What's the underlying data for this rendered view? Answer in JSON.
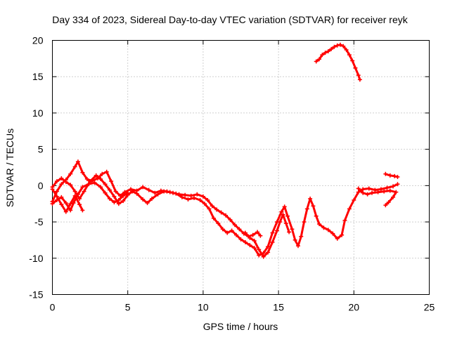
{
  "chart_data": {
    "type": "line",
    "title": "Day 334 of 2023, Sidereal Day-to-day VTEC variation (SDTVAR) for receiver reyk",
    "xlabel": "GPS time / hours",
    "ylabel": "SDTVAR / TECUs",
    "xlim": [
      0,
      25
    ],
    "ylim": [
      -15,
      20
    ],
    "xticks": [
      0,
      5,
      10,
      15,
      20,
      25
    ],
    "yticks": [
      -15,
      -10,
      -5,
      0,
      5,
      10,
      15,
      20
    ],
    "xtick_labels": [
      "0",
      "5",
      "10",
      "15",
      "20",
      "25"
    ],
    "ytick_labels": [
      "-15",
      "-10",
      "-5",
      "0",
      "5",
      "10",
      "15",
      "20"
    ],
    "grid": true,
    "marker": "+",
    "color": "#ff0000",
    "series": [
      {
        "name": "sat-track-1",
        "points": [
          [
            0,
            -2.2
          ],
          [
            0.3,
            -0.8
          ],
          [
            0.6,
            0.2
          ],
          [
            0.9,
            0.8
          ],
          [
            1.2,
            1.6
          ],
          [
            1.5,
            2.6
          ],
          [
            1.7,
            3.3
          ],
          [
            2.0,
            1.8
          ],
          [
            2.3,
            0.9
          ],
          [
            2.6,
            0.6
          ],
          [
            3.0,
            1.0
          ],
          [
            3.3,
            1.6
          ],
          [
            3.6,
            1.9
          ],
          [
            3.9,
            0.6
          ],
          [
            4.2,
            -0.8
          ],
          [
            4.5,
            -1.4
          ],
          [
            4.8,
            -0.9
          ],
          [
            5.2,
            -0.5
          ],
          [
            5.6,
            -0.7
          ],
          [
            6.0,
            -0.2
          ],
          [
            6.4,
            -0.6
          ],
          [
            6.8,
            -1.0
          ],
          [
            7.2,
            -0.7
          ],
          [
            7.6,
            -0.8
          ],
          [
            8.0,
            -1.0
          ],
          [
            8.4,
            -1.2
          ],
          [
            8.8,
            -1.3
          ],
          [
            9.2,
            -1.4
          ],
          [
            9.6,
            -1.2
          ],
          [
            10.0,
            -1.5
          ],
          [
            10.3,
            -2.0
          ],
          [
            10.6,
            -2.8
          ],
          [
            10.9,
            -3.3
          ],
          [
            11.2,
            -3.7
          ],
          [
            11.5,
            -4.1
          ],
          [
            11.8,
            -4.7
          ],
          [
            12.1,
            -5.4
          ],
          [
            12.4,
            -6.0
          ],
          [
            12.7,
            -6.6
          ],
          [
            13.0,
            -7.0
          ],
          [
            13.3,
            -6.8
          ],
          [
            13.6,
            -6.4
          ],
          [
            13.8,
            -6.9
          ]
        ]
      },
      {
        "name": "sat-track-2",
        "points": [
          [
            0,
            -0.2
          ],
          [
            0.3,
            0.6
          ],
          [
            0.6,
            1.0
          ],
          [
            0.9,
            0.5
          ],
          [
            1.2,
            0.1
          ],
          [
            1.5,
            -0.8
          ],
          [
            1.8,
            -1.8
          ],
          [
            2.1,
            -0.8
          ],
          [
            2.5,
            0.6
          ],
          [
            2.9,
            1.4
          ],
          [
            3.2,
            0.9
          ],
          [
            3.5,
            0.2
          ],
          [
            3.8,
            -0.6
          ],
          [
            4.1,
            -1.5
          ],
          [
            4.4,
            -2.5
          ],
          [
            4.7,
            -2.1
          ],
          [
            5.0,
            -1.3
          ],
          [
            5.3,
            -0.8
          ],
          [
            5.6,
            -1.1
          ],
          [
            6.0,
            -1.9
          ],
          [
            6.3,
            -2.4
          ],
          [
            6.6,
            -1.8
          ],
          [
            7.0,
            -1.2
          ],
          [
            7.4,
            -0.8
          ],
          [
            7.8,
            -0.9
          ],
          [
            8.2,
            -1.1
          ],
          [
            8.6,
            -1.6
          ],
          [
            9.0,
            -1.9
          ],
          [
            9.4,
            -1.7
          ],
          [
            9.8,
            -2.0
          ],
          [
            10.1,
            -2.5
          ],
          [
            10.4,
            -3.2
          ],
          [
            10.7,
            -4.5
          ],
          [
            11.0,
            -5.2
          ],
          [
            11.3,
            -6.0
          ],
          [
            11.6,
            -6.5
          ],
          [
            11.9,
            -6.2
          ],
          [
            12.2,
            -6.8
          ],
          [
            12.5,
            -7.4
          ],
          [
            12.8,
            -7.8
          ],
          [
            13.1,
            -8.2
          ],
          [
            13.4,
            -8.6
          ],
          [
            13.7,
            -9.6
          ],
          [
            14.0,
            -9.3
          ],
          [
            14.3,
            -8.4
          ],
          [
            14.6,
            -6.5
          ],
          [
            14.9,
            -5.0
          ],
          [
            15.2,
            -3.6
          ],
          [
            15.4,
            -2.9
          ],
          [
            15.6,
            -4.2
          ],
          [
            15.9,
            -6.0
          ],
          [
            16.1,
            -7.5
          ],
          [
            16.3,
            -8.3
          ],
          [
            16.5,
            -7.0
          ],
          [
            16.7,
            -5.0
          ],
          [
            16.9,
            -3.2
          ],
          [
            17.1,
            -1.8
          ],
          [
            17.3,
            -2.8
          ],
          [
            17.5,
            -4.2
          ],
          [
            17.7,
            -5.3
          ],
          [
            18.0,
            -5.8
          ],
          [
            18.3,
            -6.1
          ],
          [
            18.6,
            -6.6
          ],
          [
            18.9,
            -7.3
          ],
          [
            19.2,
            -6.8
          ],
          [
            19.4,
            -4.8
          ],
          [
            19.7,
            -3.2
          ],
          [
            20.0,
            -2.0
          ],
          [
            20.3,
            -0.9
          ],
          [
            20.6,
            -0.5
          ],
          [
            21.0,
            -0.4
          ],
          [
            21.4,
            -0.6
          ],
          [
            21.8,
            -0.5
          ],
          [
            22.2,
            -0.3
          ],
          [
            22.6,
            -0.1
          ],
          [
            22.9,
            0.2
          ]
        ]
      },
      {
        "name": "sat-track-3",
        "points": [
          [
            0,
            -2.5
          ],
          [
            0.3,
            -2.0
          ],
          [
            0.6,
            -1.6
          ],
          [
            0.9,
            -2.4
          ],
          [
            1.2,
            -3.4
          ],
          [
            1.4,
            -2.4
          ],
          [
            1.7,
            -1.2
          ],
          [
            2.0,
            -0.2
          ],
          [
            2.4,
            0.2
          ],
          [
            2.8,
            0.4
          ],
          [
            3.2,
            -0.2
          ],
          [
            3.5,
            -1.0
          ],
          [
            3.8,
            -1.8
          ],
          [
            4.1,
            -2.3
          ],
          [
            4.4,
            -2.0
          ],
          [
            4.7,
            -1.4
          ],
          [
            5.0,
            -1.0
          ]
        ]
      },
      {
        "name": "sat-track-4",
        "points": [
          [
            0,
            -0.5
          ],
          [
            0.3,
            -1.5
          ],
          [
            0.6,
            -2.6
          ],
          [
            0.9,
            -3.6
          ],
          [
            1.2,
            -2.5
          ],
          [
            1.5,
            -1.4
          ],
          [
            1.8,
            -2.6
          ],
          [
            2.0,
            -3.4
          ]
        ]
      },
      {
        "name": "sat-track-5",
        "points": [
          [
            12.8,
            -6.5
          ],
          [
            13.1,
            -7.2
          ],
          [
            13.4,
            -7.6
          ],
          [
            13.7,
            -8.8
          ],
          [
            14.0,
            -9.8
          ],
          [
            14.3,
            -9.2
          ],
          [
            14.6,
            -7.8
          ],
          [
            14.9,
            -6.2
          ],
          [
            15.1,
            -5.0
          ],
          [
            15.3,
            -4.0
          ],
          [
            15.5,
            -5.2
          ],
          [
            15.7,
            -6.4
          ]
        ]
      },
      {
        "name": "sat-track-6",
        "points": [
          [
            20.3,
            -0.4
          ],
          [
            20.6,
            -1.0
          ],
          [
            20.9,
            -1.2
          ],
          [
            21.2,
            -1.0
          ],
          [
            21.6,
            -0.9
          ],
          [
            22.0,
            -0.8
          ],
          [
            22.4,
            -0.7
          ],
          [
            22.8,
            -0.9
          ],
          [
            22.6,
            -1.6
          ],
          [
            22.3,
            -2.3
          ],
          [
            22.1,
            -2.7
          ]
        ]
      },
      {
        "name": "sat-track-7",
        "points": [
          [
            22.1,
            1.6
          ],
          [
            22.4,
            1.4
          ],
          [
            22.7,
            1.3
          ],
          [
            22.9,
            1.2
          ]
        ]
      },
      {
        "name": "sat-track-8",
        "points": [
          [
            17.5,
            17.1
          ],
          [
            17.7,
            17.4
          ],
          [
            17.9,
            18.0
          ],
          [
            18.1,
            18.3
          ],
          [
            18.3,
            18.5
          ],
          [
            18.5,
            18.8
          ],
          [
            18.7,
            19.1
          ],
          [
            18.9,
            19.3
          ],
          [
            19.1,
            19.4
          ],
          [
            19.3,
            19.2
          ],
          [
            19.5,
            18.7
          ],
          [
            19.7,
            18.0
          ],
          [
            19.9,
            17.2
          ],
          [
            20.1,
            16.2
          ],
          [
            20.3,
            15.2
          ],
          [
            20.4,
            14.6
          ]
        ]
      }
    ]
  }
}
